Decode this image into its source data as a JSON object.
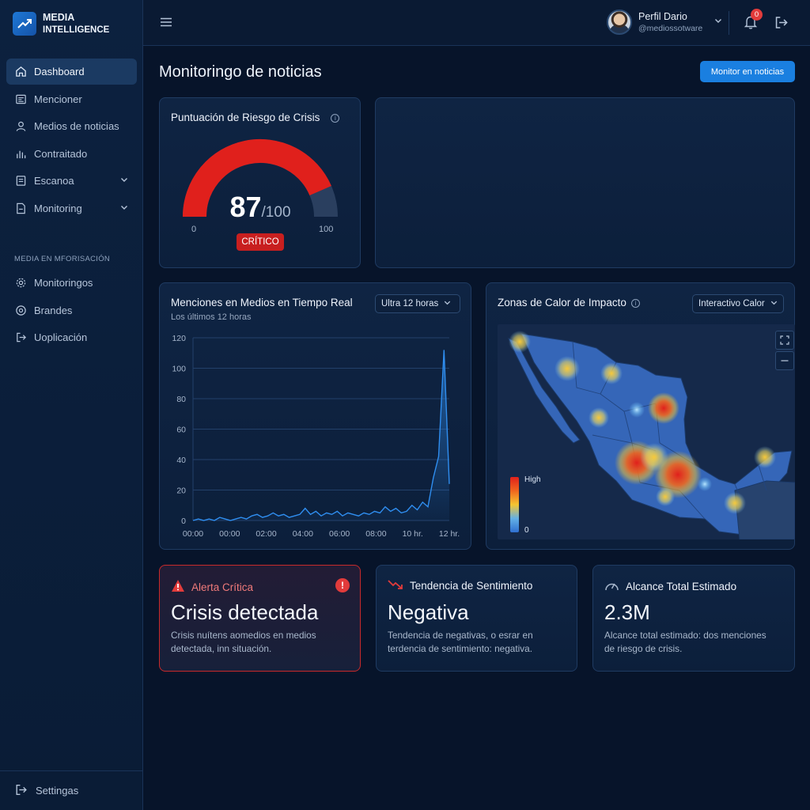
{
  "brand": {
    "line1": "MEDIA",
    "line2": "INTELLIGENCE"
  },
  "sidebar": {
    "items": [
      {
        "label": "Dashboard",
        "icon": "home-icon",
        "active": true
      },
      {
        "label": "Mencioner",
        "icon": "newspaper-icon"
      },
      {
        "label": "Medios de noticias",
        "icon": "user-icon"
      },
      {
        "label": "Contraitado",
        "icon": "bar-chart-icon"
      },
      {
        "label": "Escanoa",
        "icon": "document-icon",
        "expandable": true
      },
      {
        "label": "Monitoring",
        "icon": "file-icon",
        "expandable": true
      }
    ],
    "section_label": "MEDIA EN MFORISACIÓN",
    "section_items": [
      {
        "label": "Monitoringos",
        "icon": "gear-icon"
      },
      {
        "label": "Brandes",
        "icon": "circle-settings-icon"
      },
      {
        "label": "Uoplicación",
        "icon": "exit-arrow-icon"
      }
    ],
    "footer_label": "Settingas"
  },
  "topbar": {
    "profile_name": "Perfil Dario",
    "profile_handle": "@mediossotware",
    "notifications_count": "0"
  },
  "page": {
    "title": "Monitoringo de noticias",
    "primary_button": "Monitor en noticias"
  },
  "risk_card": {
    "title": "Puntuación de Riesgo de Crisis",
    "score": "87",
    "max": "/100",
    "min_label": "0",
    "max_label": "100",
    "status": "CRÍTICO",
    "score_fraction": 0.87,
    "colors": {
      "fill": "#e0201c",
      "track": "#2a3f5f"
    }
  },
  "mentions_card": {
    "title": "Menciones en Medios en Tiempo Real",
    "subtitle": "Los últimos 12 horas",
    "range_select": "Ultra 12 horas"
  },
  "chart_data": {
    "type": "line",
    "title": "Menciones en Medios en Tiempo Real",
    "xlabel": "",
    "ylabel": "",
    "ylim": [
      0,
      120
    ],
    "yticks": [
      "0",
      "20",
      "40",
      "60",
      "80",
      "100",
      "120"
    ],
    "xticks": [
      "00:00",
      "00:00",
      "02:00",
      "04:00",
      "06:00",
      "08:00",
      "10 hr.",
      "12 hr."
    ],
    "grid": true,
    "color": "#2f8ef0",
    "x": [
      0,
      0.25,
      0.5,
      0.75,
      1,
      1.25,
      1.5,
      1.75,
      2,
      2.25,
      2.5,
      2.75,
      3,
      3.25,
      3.5,
      3.75,
      4,
      4.25,
      4.5,
      4.75,
      5,
      5.25,
      5.5,
      5.75,
      6,
      6.25,
      6.5,
      6.75,
      7,
      7.25,
      7.5,
      7.75,
      8,
      8.25,
      8.5,
      8.75,
      9,
      9.25,
      9.5,
      9.75,
      10,
      10.25,
      10.5,
      10.75,
      11,
      11.25,
      11.5,
      11.75,
      12
    ],
    "values": [
      0,
      1,
      0,
      1,
      0,
      2,
      1,
      0,
      1,
      2,
      1,
      3,
      4,
      2,
      3,
      5,
      3,
      4,
      2,
      3,
      4,
      8,
      4,
      6,
      3,
      5,
      4,
      6,
      3,
      5,
      4,
      3,
      5,
      4,
      6,
      5,
      9,
      6,
      8,
      5,
      6,
      10,
      7,
      12,
      9,
      28,
      42,
      112,
      24
    ]
  },
  "heat_card": {
    "title": "Zonas de Calor de Impacto",
    "mode_select": "Interactivo Calor",
    "legend_high": "High",
    "legend_low": "0"
  },
  "kpis": [
    {
      "title": "Alerta Crítica",
      "icon": "warning-triangle-icon",
      "value": "Crisis detectada",
      "description": "Crisis nuítens aomedios en medios detectada, inn situación.",
      "accent": "#e23b3b"
    },
    {
      "title": "Tendencia de Sentimiento",
      "icon": "trend-down-icon",
      "value": "Negativa",
      "description": "Tendencia de negativas, o esrar en terdencia de sentimiento: negativa.",
      "accent": "#e23b3b"
    },
    {
      "title": "Alcance Total Estimado",
      "icon": "speedometer-icon",
      "value": "2.3M",
      "description": "Alcance total estimado: dos menciones de riesgo de crisis.",
      "accent": "#a6b6cc"
    }
  ]
}
